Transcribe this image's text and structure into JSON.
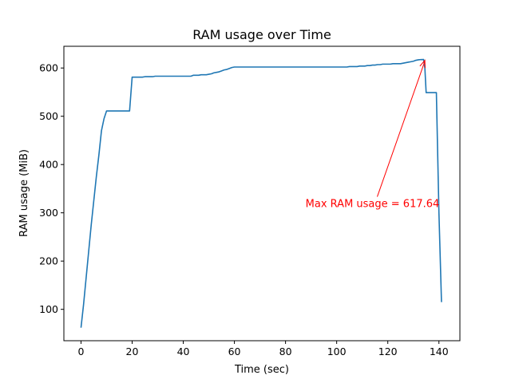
{
  "chart_data": {
    "type": "line",
    "title": "RAM usage over Time",
    "xlabel": "Time (sec)",
    "ylabel": "RAM usage (MiB)",
    "xlim": [
      -6.7,
      148.2
    ],
    "ylim": [
      35,
      645
    ],
    "xticks": [
      0,
      20,
      40,
      60,
      80,
      100,
      120,
      140
    ],
    "yticks": [
      100,
      200,
      300,
      400,
      500,
      600
    ],
    "grid": false,
    "line_color": "#1f77b4",
    "series": [
      {
        "x": [
          0,
          1,
          2,
          3,
          4,
          5,
          6,
          7,
          8,
          9,
          10,
          11,
          12,
          13,
          14,
          15,
          16,
          17,
          18,
          19,
          20,
          21,
          22,
          23,
          24,
          25,
          26,
          27,
          28,
          29,
          30,
          31,
          32,
          33,
          34,
          35,
          36,
          37,
          38,
          39,
          40,
          41,
          42,
          43,
          44,
          45,
          46,
          47,
          48,
          49,
          50,
          51,
          52,
          53,
          54,
          55,
          56,
          57,
          58,
          59,
          60,
          61,
          62,
          63,
          64,
          65,
          66,
          67,
          68,
          69,
          70,
          71,
          72,
          73,
          74,
          75,
          76,
          77,
          78,
          79,
          80,
          81,
          82,
          83,
          84,
          85,
          86,
          87,
          88,
          89,
          90,
          91,
          92,
          93,
          94,
          95,
          96,
          97,
          98,
          99,
          100,
          101,
          102,
          103,
          104,
          105,
          106,
          107,
          108,
          109,
          110,
          111,
          112,
          113,
          114,
          115,
          116,
          117,
          118,
          119,
          120,
          121,
          122,
          123,
          124,
          125,
          126,
          127,
          128,
          129,
          130,
          131,
          132,
          133,
          134,
          134.5,
          135,
          136,
          137,
          138,
          139,
          140,
          141
        ],
        "y": [
          62,
          110,
          165,
          220,
          275,
          325,
          375,
          420,
          470,
          495,
          511,
          511,
          511,
          511,
          511,
          511,
          511,
          511,
          511,
          511,
          581,
          581,
          581,
          581,
          581,
          582,
          582,
          582,
          582,
          583,
          583,
          583,
          583,
          583,
          583,
          583,
          583,
          583,
          583,
          583,
          583,
          583,
          583,
          583,
          585,
          585,
          585,
          586,
          586,
          586,
          587,
          588,
          590,
          591,
          592,
          594,
          596,
          597,
          599,
          601,
          602,
          602,
          602,
          602,
          602,
          602,
          602,
          602,
          602,
          602,
          602,
          602,
          602,
          602,
          602,
          602,
          602,
          602,
          602,
          602,
          602,
          602,
          602,
          602,
          602,
          602,
          602,
          602,
          602,
          602,
          602,
          602,
          602,
          602,
          602,
          602,
          602,
          602,
          602,
          602,
          602,
          602,
          602,
          602,
          602,
          603,
          603,
          603,
          603,
          604,
          604,
          604,
          605,
          605,
          606,
          606,
          607,
          607,
          608,
          608,
          608,
          608,
          609,
          609,
          609,
          609,
          610,
          611,
          612,
          613,
          614,
          616,
          617,
          617.5,
          617.64,
          600,
          549,
          549,
          549,
          549,
          549,
          300,
          115
        ]
      }
    ],
    "annotation": {
      "text": "Max RAM usage = 617.64",
      "point": [
        134.5,
        617.64
      ],
      "text_pos": [
        114,
        320
      ],
      "color": "#ff0000"
    }
  }
}
